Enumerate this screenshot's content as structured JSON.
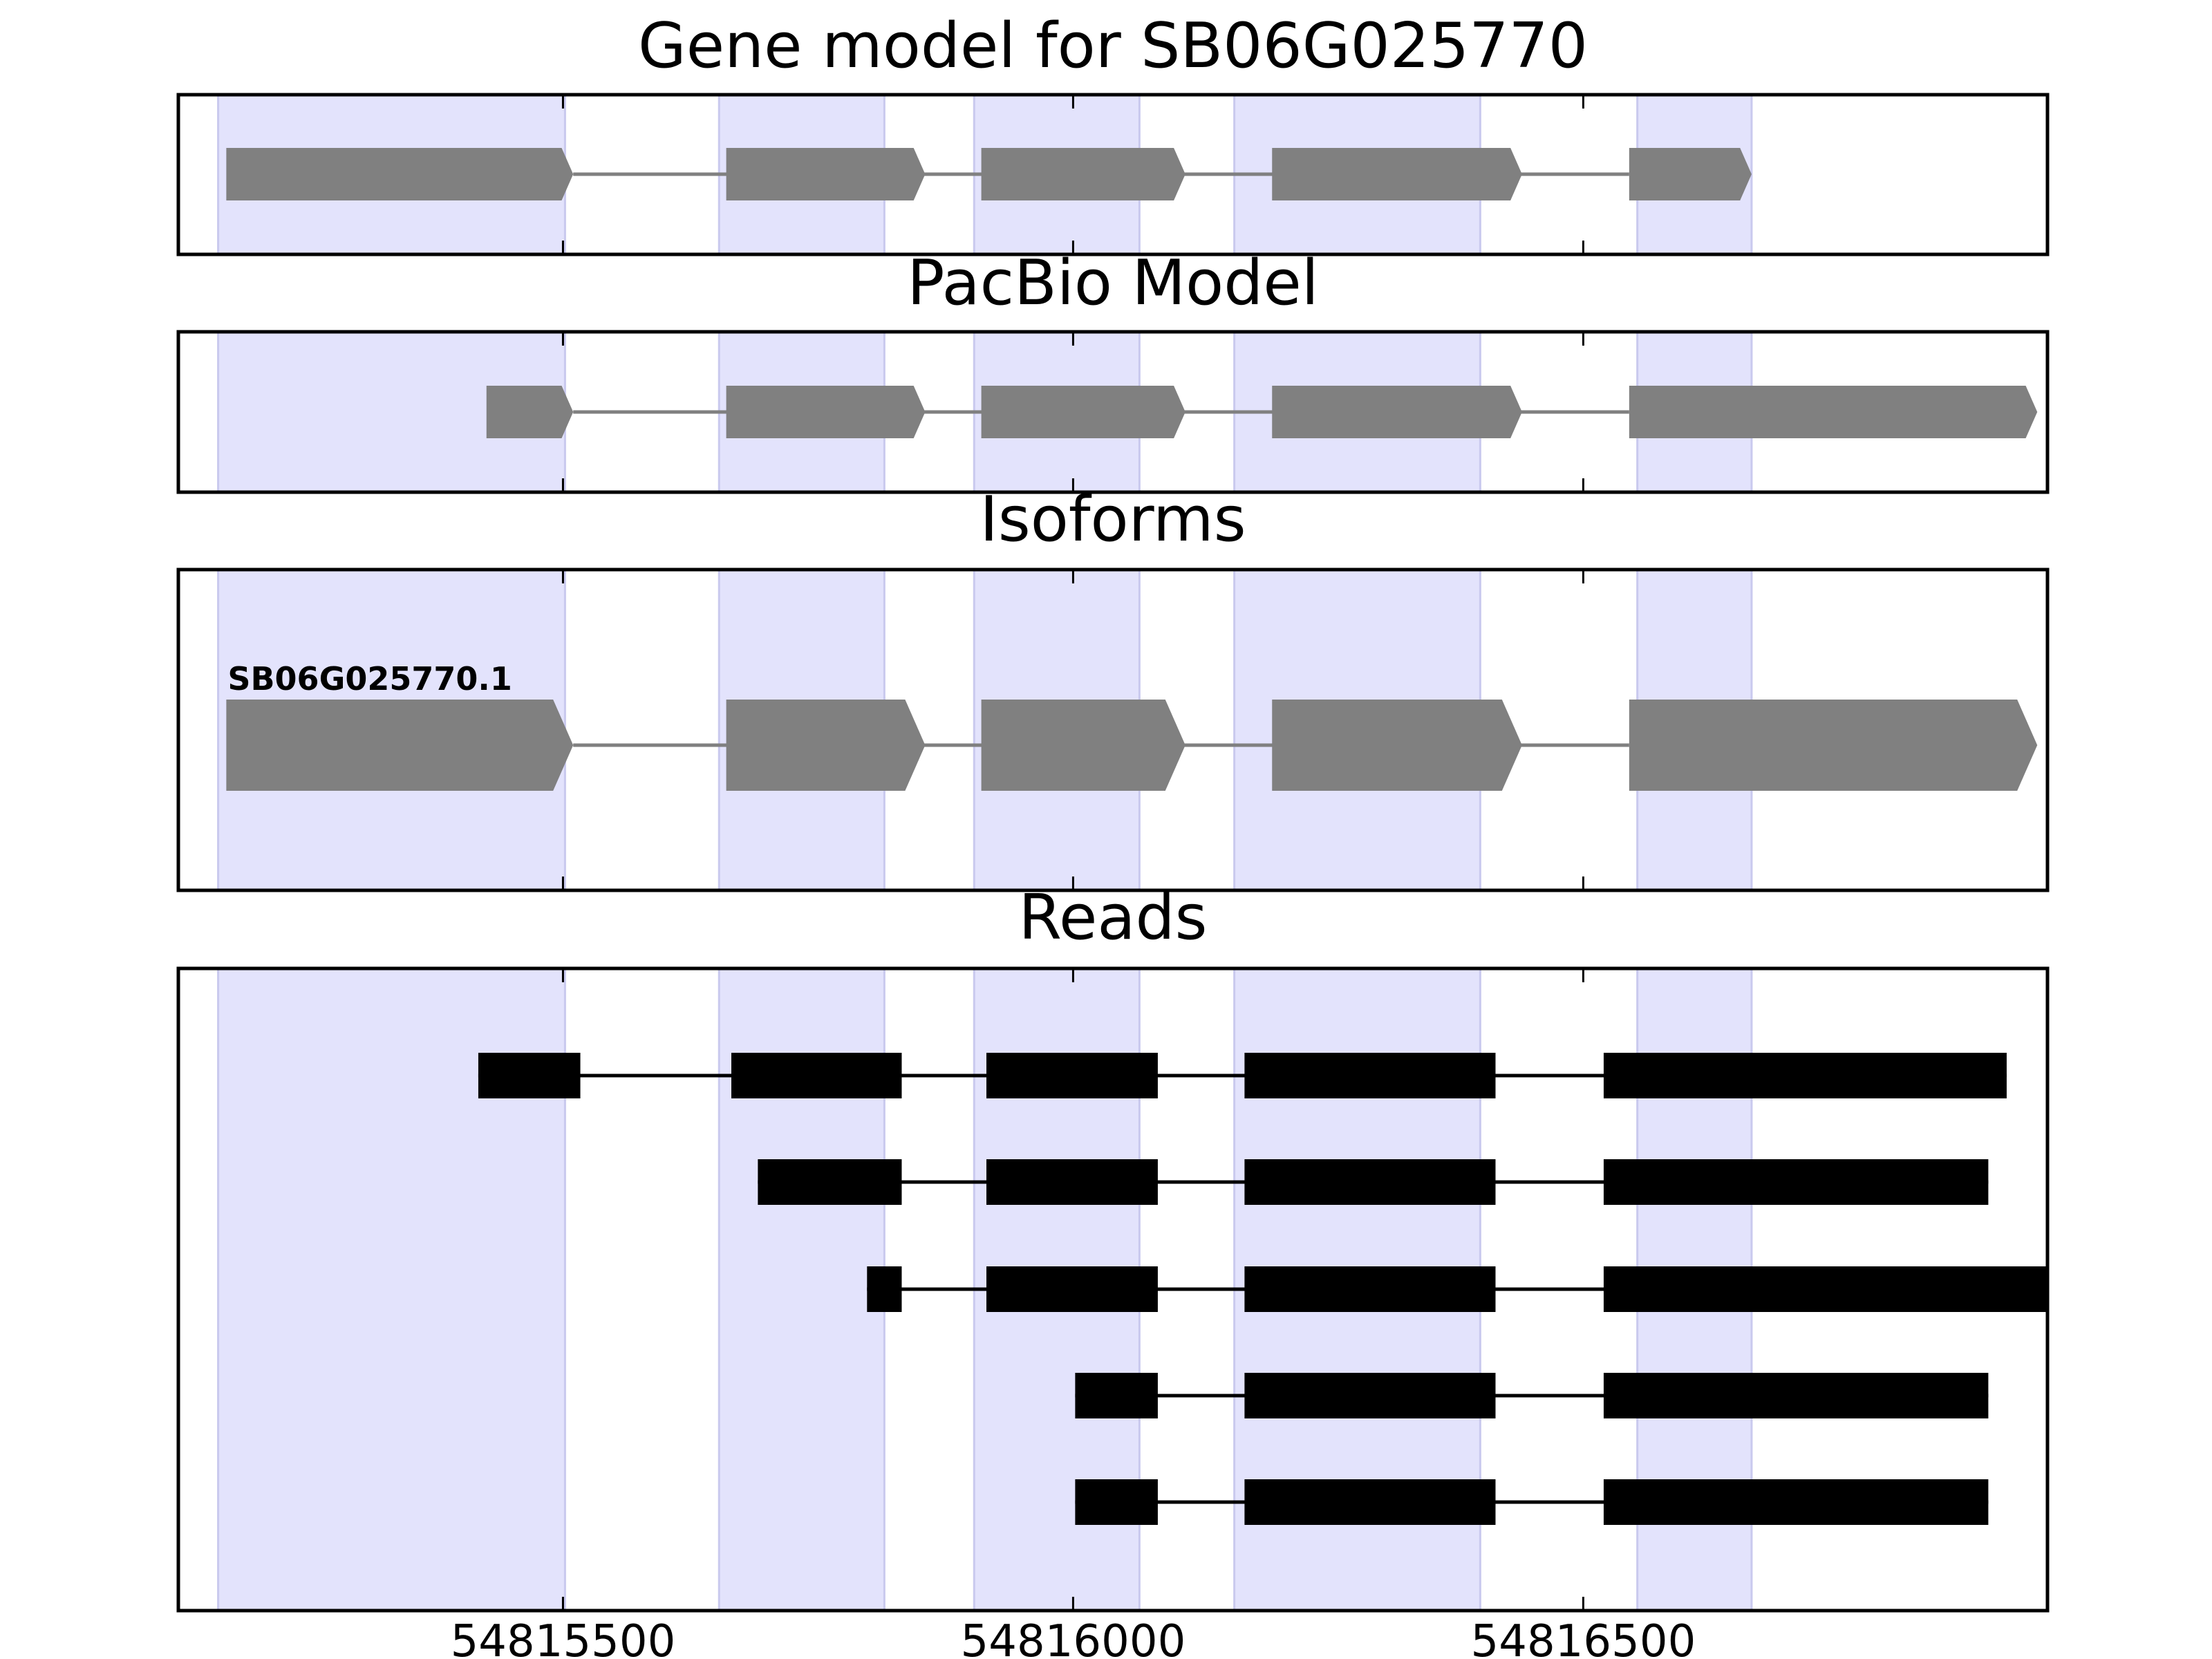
{
  "panels": [
    {
      "title": "Gene model for SB06G025770",
      "tracks": [
        {
          "style": "gene",
          "segments": [
            [
              54815170,
              54815510
            ],
            [
              54815660,
              54815855
            ],
            [
              54815910,
              54816110
            ],
            [
              54816195,
              54816440
            ],
            [
              54816545,
              54816665
            ]
          ]
        }
      ]
    },
    {
      "title": "PacBio Model",
      "tracks": [
        {
          "style": "gene",
          "segments": [
            [
              54815425,
              54815510
            ],
            [
              54815660,
              54815855
            ],
            [
              54815910,
              54816110
            ],
            [
              54816195,
              54816440
            ],
            [
              54816545,
              54816945
            ]
          ]
        }
      ]
    },
    {
      "title": "Isoforms",
      "tracks": [
        {
          "style": "gene",
          "label": "SB06G025770.1",
          "segments": [
            [
              54815170,
              54815510
            ],
            [
              54815660,
              54815855
            ],
            [
              54815910,
              54816110
            ],
            [
              54816195,
              54816440
            ],
            [
              54816545,
              54816945
            ]
          ]
        }
      ]
    },
    {
      "title": "Reads",
      "tracks": [
        {
          "style": "read",
          "segments": [
            [
              54815417,
              54815517
            ],
            [
              54815665,
              54815832
            ],
            [
              54815915,
              54816083
            ],
            [
              54816168,
              54816414
            ],
            [
              54816520,
              54816915
            ]
          ]
        },
        {
          "style": "read",
          "segments": [
            [
              54815691,
              54815832
            ],
            [
              54815915,
              54816083
            ],
            [
              54816168,
              54816414
            ],
            [
              54816520,
              54816897
            ]
          ]
        },
        {
          "style": "read",
          "segments": [
            [
              54815798,
              54815832
            ],
            [
              54815915,
              54816083
            ],
            [
              54816168,
              54816414
            ],
            [
              54816520,
              54816955
            ]
          ]
        },
        {
          "style": "read",
          "segments": [
            [
              54816002,
              54816083
            ],
            [
              54816168,
              54816414
            ],
            [
              54816520,
              54816897
            ]
          ]
        },
        {
          "style": "read",
          "segments": [
            [
              54816002,
              54816083
            ],
            [
              54816168,
              54816414
            ],
            [
              54816520,
              54816897
            ]
          ]
        }
      ]
    }
  ],
  "highlight_regions": [
    [
      54815162,
      54815502
    ],
    [
      54815653,
      54815815
    ],
    [
      54815903,
      54816065
    ],
    [
      54816158,
      54816399
    ],
    [
      54816553,
      54816665
    ]
  ],
  "xaxis": {
    "range": [
      54815123,
      54816955
    ],
    "ticks": [
      54815500,
      54816000,
      54816500
    ]
  },
  "colors": {
    "highlight": "#e3e3fc",
    "highlight_edge": "#c9c9ee",
    "gene": "#808080",
    "read": "#000000",
    "frame": "#000000"
  }
}
